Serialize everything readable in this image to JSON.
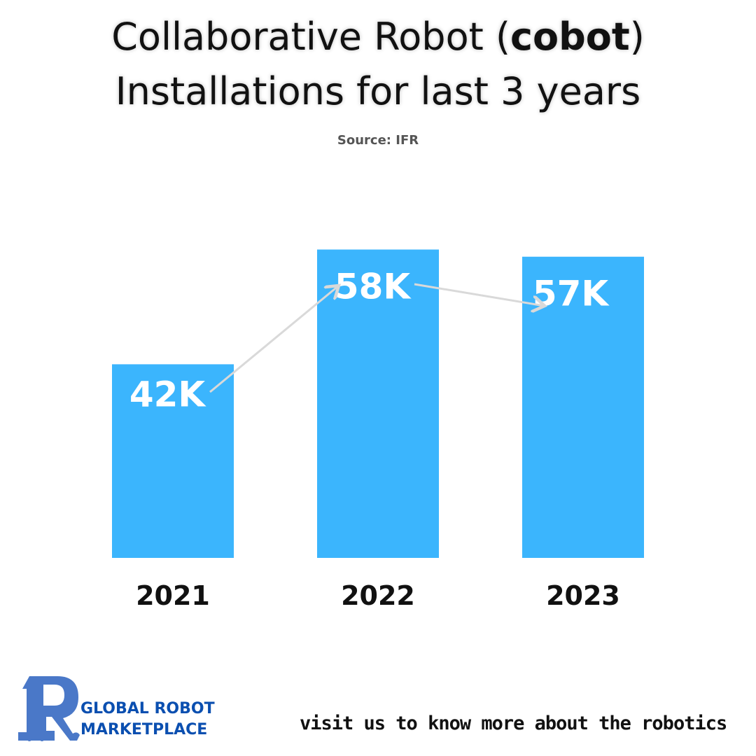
{
  "title": {
    "line1_pre": "Collaborative Robot (",
    "line1_bold": "cobot",
    "line1_post": ")",
    "line2": "Installations for last 3 years"
  },
  "source": "Source: IFR",
  "chart_data": {
    "type": "bar",
    "categories": [
      "2021",
      "2022",
      "2023"
    ],
    "values": [
      42,
      58,
      57
    ],
    "data_labels": [
      "42K",
      "58K",
      "57K"
    ],
    "unit": "K",
    "ylim": [
      15,
      60
    ],
    "grid": false,
    "bar_color": "#3bb5fd",
    "arrow_color": "#d9d9d9",
    "annotations": "trend arrows connecting data labels"
  },
  "brand": {
    "line1": "GLOBAL ROBOT",
    "line2": "MARKETPLACE",
    "color": "#0b4fb0",
    "logo_color": "#4a78c8"
  },
  "footer": {
    "visit_text": "visit us to know more about the robotics"
  }
}
